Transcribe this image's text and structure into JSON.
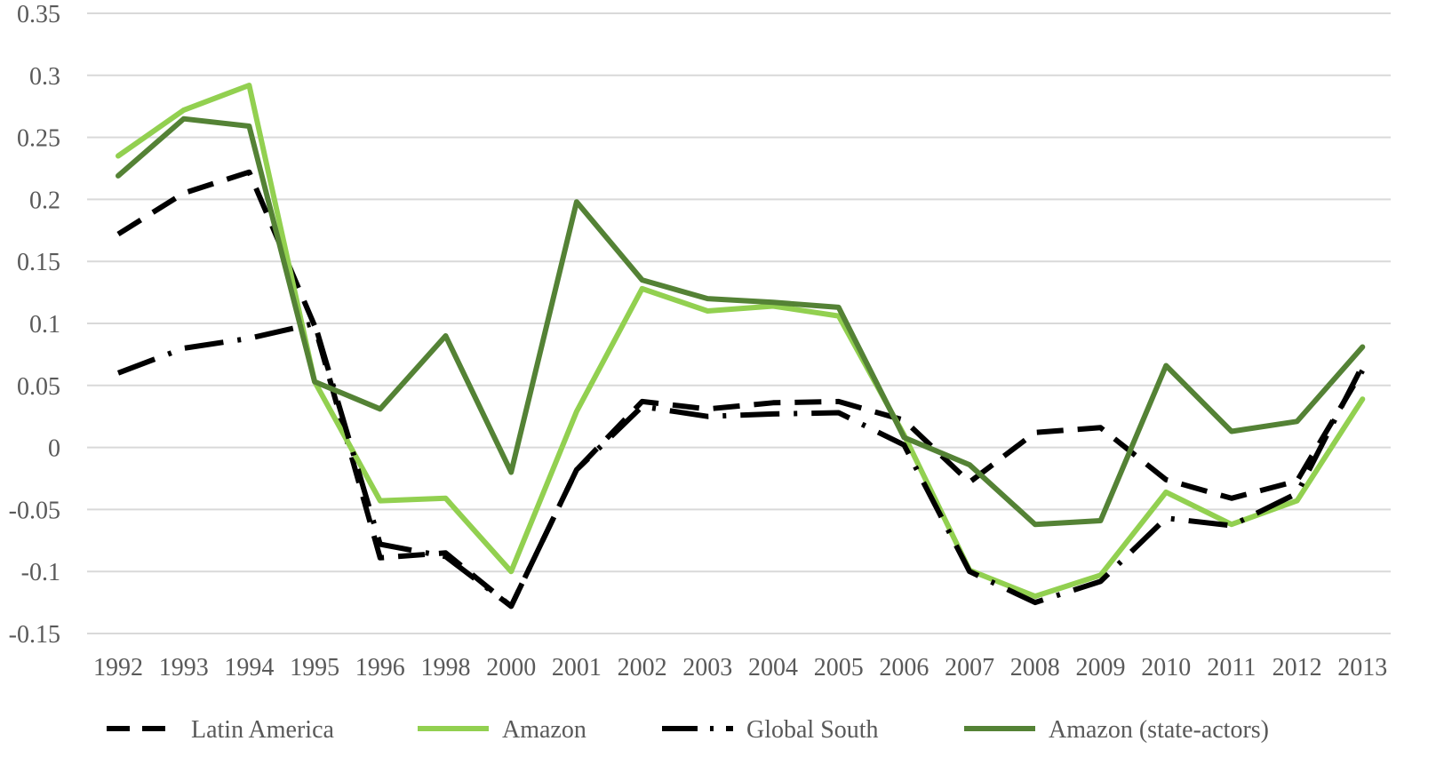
{
  "chart_data": {
    "type": "line",
    "title": "",
    "xlabel": "",
    "ylabel": "",
    "categories": [
      "1992",
      "1993",
      "1994",
      "1995",
      "1996",
      "1998",
      "2000",
      "2001",
      "2002",
      "2003",
      "2004",
      "2005",
      "2006",
      "2007",
      "2008",
      "2009",
      "2010",
      "2011",
      "2012",
      "2013"
    ],
    "ylim": [
      -0.15,
      0.35
    ],
    "yticks": [
      "0.35",
      "0.3",
      "0.25",
      "0.2",
      "0.15",
      "0.1",
      "0.05",
      "0",
      "-0.05",
      "-0.1",
      "-0.15"
    ],
    "ytick_values": [
      0.35,
      0.3,
      0.25,
      0.2,
      0.15,
      0.1,
      0.05,
      0,
      -0.05,
      -0.1,
      -0.15
    ],
    "grid": true,
    "legend_position": "bottom",
    "series": [
      {
        "name": "Latin America",
        "color": "#000000",
        "style": "dash",
        "values": [
          0.172,
          0.205,
          0.222,
          0.098,
          -0.089,
          -0.085,
          -0.128,
          -0.018,
          0.037,
          0.031,
          0.036,
          0.037,
          0.022,
          -0.028,
          0.012,
          0.016,
          -0.026,
          -0.041,
          -0.027,
          0.062
        ]
      },
      {
        "name": "Amazon",
        "color": "#92d050",
        "style": "solid",
        "values": [
          0.235,
          0.272,
          0.292,
          0.053,
          -0.043,
          -0.041,
          -0.1,
          0.029,
          0.128,
          0.11,
          0.114,
          0.106,
          0.01,
          -0.099,
          -0.12,
          -0.103,
          -0.036,
          -0.062,
          -0.043,
          0.039
        ]
      },
      {
        "name": "Global South",
        "color": "#000000",
        "style": "dashdot",
        "values": [
          0.06,
          0.08,
          0.088,
          0.1,
          -0.078,
          -0.088,
          -0.128,
          -0.018,
          0.033,
          0.025,
          0.027,
          0.028,
          0.002,
          -0.1,
          -0.125,
          -0.108,
          -0.057,
          -0.063,
          -0.037,
          0.066
        ]
      },
      {
        "name": "Amazon (state-actors)",
        "color": "#548235",
        "style": "solid",
        "values": [
          0.219,
          0.265,
          0.259,
          0.053,
          0.031,
          0.09,
          -0.02,
          0.198,
          0.135,
          0.12,
          0.117,
          0.113,
          0.008,
          -0.014,
          -0.062,
          -0.059,
          0.066,
          0.013,
          0.021,
          0.081
        ]
      }
    ]
  }
}
